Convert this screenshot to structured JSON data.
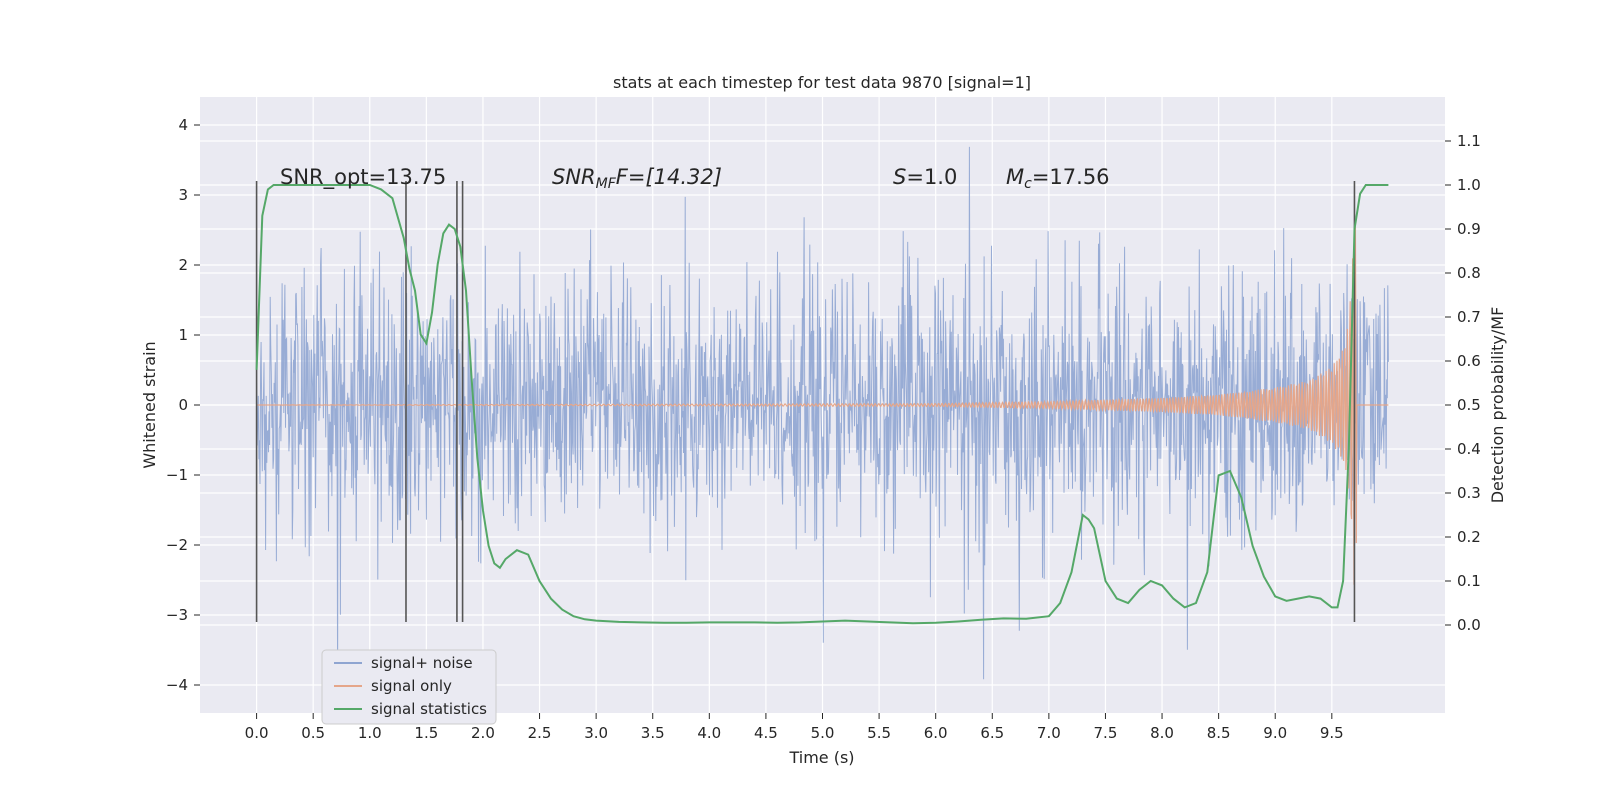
{
  "chart_data": {
    "type": "line",
    "title": "stats at each timestep for test data 9870 [signal=1]",
    "xlabel": "Time (s)",
    "ylabel_left": "Whitened strain",
    "ylabel_right": "Detection probability/MF",
    "xlim": [
      -0.5,
      10.5
    ],
    "ylim_left": [
      -4.4,
      4.4
    ],
    "ylim_right": [
      -0.2,
      1.2
    ],
    "x_ticks": [
      "0.0",
      "0.5",
      "1.0",
      "1.5",
      "2.0",
      "2.5",
      "3.0",
      "3.5",
      "4.0",
      "4.5",
      "5.0",
      "5.5",
      "6.0",
      "6.5",
      "7.0",
      "7.5",
      "8.0",
      "8.5",
      "9.0",
      "9.5"
    ],
    "x_tick_values": [
      0.0,
      0.5,
      1.0,
      1.5,
      2.0,
      2.5,
      3.0,
      3.5,
      4.0,
      4.5,
      5.0,
      5.5,
      6.0,
      6.5,
      7.0,
      7.5,
      8.0,
      8.5,
      9.0,
      9.5
    ],
    "y_left_ticks": [
      "4",
      "3",
      "2",
      "1",
      "0",
      "−1",
      "−2",
      "−3",
      "−4"
    ],
    "y_left_tick_values": [
      4,
      3,
      2,
      1,
      0,
      -1,
      -2,
      -3,
      -4
    ],
    "y_right_ticks": [
      "1.1",
      "1.0",
      "0.9",
      "0.8",
      "0.7",
      "0.6",
      "0.5",
      "0.4",
      "0.3",
      "0.2",
      "0.1",
      "0.0"
    ],
    "y_right_tick_values": [
      1.1,
      1.0,
      0.9,
      0.8,
      0.7,
      0.6,
      0.5,
      0.4,
      0.3,
      0.2,
      0.1,
      0.0
    ],
    "grid": true,
    "annotations": {
      "snr_opt": "SNR_opt=13.75",
      "snr_mf_prefix": "SNR",
      "snr_mf_sub": "MF",
      "snr_mf_suffix": "F=[14.32]",
      "s_prefix": "S",
      "s_value": "=1.0",
      "mc_prefix": "M",
      "mc_sub": "c",
      "mc_value": "=17.56"
    },
    "vertical_lines_x": [
      0.0,
      1.32,
      1.77,
      1.82,
      9.7
    ],
    "vertical_lines_range_left": [
      -3.1,
      3.2
    ],
    "series": [
      {
        "name": "signal+ noise",
        "color": "#8fa5d1",
        "x_range": [
          0.0,
          10.0
        ],
        "envelope_sigma": 0.9,
        "spike_max": 4.05
      },
      {
        "name": "signal only",
        "color": "#e5a68a",
        "chirp_x": [
          0.0,
          6.0,
          7.0,
          8.0,
          8.5,
          9.0,
          9.3,
          9.5,
          9.6,
          9.65,
          9.7,
          10.0
        ],
        "chirp_amp": [
          0.0,
          0.02,
          0.05,
          0.1,
          0.15,
          0.25,
          0.35,
          0.55,
          0.8,
          1.2,
          2.7,
          0.0
        ]
      },
      {
        "name": "signal statistics",
        "color": "#55a868",
        "x": [
          0.0,
          0.05,
          0.1,
          0.15,
          0.2,
          0.3,
          0.4,
          0.6,
          0.8,
          1.0,
          1.1,
          1.2,
          1.3,
          1.35,
          1.4,
          1.45,
          1.5,
          1.55,
          1.6,
          1.65,
          1.7,
          1.75,
          1.8,
          1.85,
          1.9,
          1.95,
          2.0,
          2.05,
          2.1,
          2.15,
          2.2,
          2.3,
          2.4,
          2.5,
          2.6,
          2.7,
          2.8,
          2.9,
          3.0,
          3.2,
          3.4,
          3.6,
          3.8,
          4.0,
          4.2,
          4.4,
          4.6,
          4.8,
          5.0,
          5.2,
          5.4,
          5.6,
          5.8,
          6.0,
          6.2,
          6.4,
          6.6,
          6.8,
          7.0,
          7.1,
          7.2,
          7.3,
          7.35,
          7.4,
          7.45,
          7.5,
          7.6,
          7.7,
          7.8,
          7.9,
          8.0,
          8.1,
          8.2,
          8.3,
          8.4,
          8.5,
          8.6,
          8.7,
          8.8,
          8.9,
          9.0,
          9.1,
          9.2,
          9.3,
          9.4,
          9.5,
          9.55,
          9.6,
          9.65,
          9.7,
          9.75,
          9.8,
          9.9,
          10.0
        ],
        "y": [
          0.58,
          0.93,
          0.99,
          1.0,
          1.0,
          1.0,
          1.0,
          1.0,
          1.0,
          1.0,
          0.99,
          0.97,
          0.88,
          0.81,
          0.76,
          0.66,
          0.64,
          0.71,
          0.82,
          0.89,
          0.91,
          0.9,
          0.86,
          0.76,
          0.56,
          0.38,
          0.26,
          0.18,
          0.14,
          0.13,
          0.15,
          0.17,
          0.16,
          0.1,
          0.06,
          0.035,
          0.02,
          0.013,
          0.01,
          0.007,
          0.006,
          0.005,
          0.005,
          0.006,
          0.006,
          0.006,
          0.005,
          0.006,
          0.008,
          0.01,
          0.008,
          0.006,
          0.004,
          0.005,
          0.008,
          0.012,
          0.015,
          0.014,
          0.02,
          0.05,
          0.12,
          0.25,
          0.24,
          0.22,
          0.16,
          0.1,
          0.06,
          0.05,
          0.08,
          0.1,
          0.09,
          0.06,
          0.04,
          0.05,
          0.12,
          0.34,
          0.35,
          0.29,
          0.18,
          0.11,
          0.065,
          0.055,
          0.06,
          0.065,
          0.06,
          0.04,
          0.04,
          0.1,
          0.4,
          0.9,
          0.98,
          1.0,
          1.0,
          1.0
        ]
      }
    ],
    "legend": {
      "placement": "lower-left",
      "entries": [
        "signal+ noise",
        "signal only",
        "signal statistics"
      ]
    }
  }
}
